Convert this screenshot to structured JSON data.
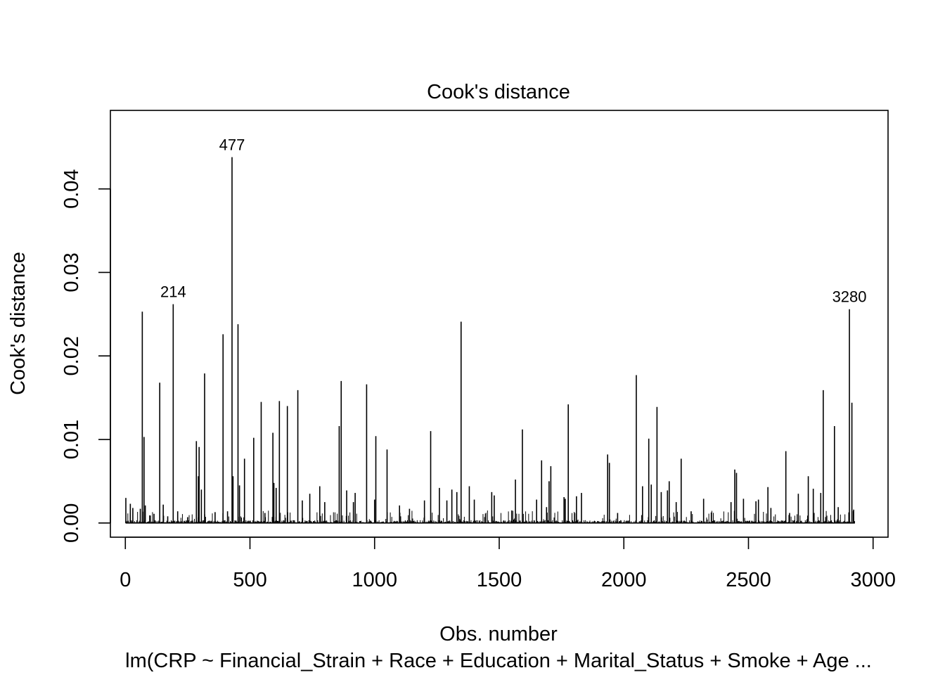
{
  "chart_data": {
    "type": "bar",
    "title": "Cook's distance",
    "xlabel": "Obs. number",
    "ylabel": "Cook's distance",
    "subtitle": "lm(CRP ~ Financial_Strain + Race + Education + Marital_Status + Smoke + Age ...",
    "xlim": [
      -60,
      3060
    ],
    "ylim": [
      -0.0017,
      0.0494
    ],
    "xticks": [
      0,
      500,
      1000,
      1500,
      2000,
      2500,
      3000
    ],
    "xtick_labels": [
      "0",
      "500",
      "1000",
      "1500",
      "2000",
      "2500",
      "3000"
    ],
    "yticks": [
      0.0,
      0.01,
      0.02,
      0.03,
      0.04
    ],
    "ytick_labels": [
      "0.00",
      "0.01",
      "0.02",
      "0.03",
      "0.04"
    ],
    "grid": false,
    "legend": false,
    "n_obs": 2927,
    "spikes": [
      {
        "x": 2,
        "y": 0.003
      },
      {
        "x": 20,
        "y": 0.0023
      },
      {
        "x": 30,
        "y": 0.0018
      },
      {
        "x": 60,
        "y": 0.0017
      },
      {
        "x": 68,
        "y": 0.0253
      },
      {
        "x": 75,
        "y": 0.0103
      },
      {
        "x": 80,
        "y": 0.0021
      },
      {
        "x": 100,
        "y": 0.0009
      },
      {
        "x": 115,
        "y": 0.0011
      },
      {
        "x": 138,
        "y": 0.0168
      },
      {
        "x": 152,
        "y": 0.0022
      },
      {
        "x": 170,
        "y": 0.0008
      },
      {
        "x": 192,
        "y": 0.0262
      },
      {
        "x": 210,
        "y": 0.0014
      },
      {
        "x": 250,
        "y": 0.0007
      },
      {
        "x": 285,
        "y": 0.0098
      },
      {
        "x": 293,
        "y": 0.0056
      },
      {
        "x": 296,
        "y": 0.0091
      },
      {
        "x": 305,
        "y": 0.004
      },
      {
        "x": 318,
        "y": 0.0179
      },
      {
        "x": 360,
        "y": 0.0013
      },
      {
        "x": 392,
        "y": 0.0226
      },
      {
        "x": 410,
        "y": 0.0014
      },
      {
        "x": 428,
        "y": 0.0438
      },
      {
        "x": 432,
        "y": 0.0056
      },
      {
        "x": 452,
        "y": 0.0238
      },
      {
        "x": 458,
        "y": 0.0045
      },
      {
        "x": 478,
        "y": 0.0077
      },
      {
        "x": 515,
        "y": 0.0102
      },
      {
        "x": 545,
        "y": 0.0145
      },
      {
        "x": 560,
        "y": 0.0012
      },
      {
        "x": 592,
        "y": 0.0108
      },
      {
        "x": 596,
        "y": 0.0048
      },
      {
        "x": 605,
        "y": 0.0042
      },
      {
        "x": 618,
        "y": 0.0146
      },
      {
        "x": 650,
        "y": 0.014
      },
      {
        "x": 692,
        "y": 0.0159
      },
      {
        "x": 710,
        "y": 0.0027
      },
      {
        "x": 740,
        "y": 0.0035
      },
      {
        "x": 780,
        "y": 0.0044
      },
      {
        "x": 800,
        "y": 0.0025
      },
      {
        "x": 858,
        "y": 0.0116
      },
      {
        "x": 866,
        "y": 0.017
      },
      {
        "x": 888,
        "y": 0.0039
      },
      {
        "x": 915,
        "y": 0.0025
      },
      {
        "x": 922,
        "y": 0.0036
      },
      {
        "x": 968,
        "y": 0.0166
      },
      {
        "x": 1000,
        "y": 0.0028
      },
      {
        "x": 1005,
        "y": 0.0104
      },
      {
        "x": 1050,
        "y": 0.0088
      },
      {
        "x": 1100,
        "y": 0.0021
      },
      {
        "x": 1140,
        "y": 0.0017
      },
      {
        "x": 1200,
        "y": 0.0027
      },
      {
        "x": 1225,
        "y": 0.011
      },
      {
        "x": 1260,
        "y": 0.0042
      },
      {
        "x": 1290,
        "y": 0.0027
      },
      {
        "x": 1310,
        "y": 0.004
      },
      {
        "x": 1330,
        "y": 0.0037
      },
      {
        "x": 1347,
        "y": 0.0241
      },
      {
        "x": 1380,
        "y": 0.0044
      },
      {
        "x": 1400,
        "y": 0.0028
      },
      {
        "x": 1470,
        "y": 0.0037
      },
      {
        "x": 1480,
        "y": 0.0033
      },
      {
        "x": 1550,
        "y": 0.0015
      },
      {
        "x": 1565,
        "y": 0.0052
      },
      {
        "x": 1593,
        "y": 0.0112
      },
      {
        "x": 1650,
        "y": 0.0028
      },
      {
        "x": 1670,
        "y": 0.0075
      },
      {
        "x": 1690,
        "y": 0.0019
      },
      {
        "x": 1700,
        "y": 0.005
      },
      {
        "x": 1707,
        "y": 0.0068
      },
      {
        "x": 1760,
        "y": 0.0031
      },
      {
        "x": 1765,
        "y": 0.0029
      },
      {
        "x": 1777,
        "y": 0.0142
      },
      {
        "x": 1810,
        "y": 0.0032
      },
      {
        "x": 1830,
        "y": 0.0036
      },
      {
        "x": 1935,
        "y": 0.0082
      },
      {
        "x": 1942,
        "y": 0.0072
      },
      {
        "x": 1975,
        "y": 0.0012
      },
      {
        "x": 2050,
        "y": 0.0177
      },
      {
        "x": 2075,
        "y": 0.0044
      },
      {
        "x": 2100,
        "y": 0.0101
      },
      {
        "x": 2110,
        "y": 0.0046
      },
      {
        "x": 2133,
        "y": 0.0139
      },
      {
        "x": 2150,
        "y": 0.0037
      },
      {
        "x": 2175,
        "y": 0.0039
      },
      {
        "x": 2182,
        "y": 0.005
      },
      {
        "x": 2210,
        "y": 0.0025
      },
      {
        "x": 2230,
        "y": 0.0077
      },
      {
        "x": 2270,
        "y": 0.0014
      },
      {
        "x": 2320,
        "y": 0.0029
      },
      {
        "x": 2430,
        "y": 0.0025
      },
      {
        "x": 2445,
        "y": 0.0064
      },
      {
        "x": 2452,
        "y": 0.006
      },
      {
        "x": 2480,
        "y": 0.0029
      },
      {
        "x": 2530,
        "y": 0.0026
      },
      {
        "x": 2540,
        "y": 0.0028
      },
      {
        "x": 2578,
        "y": 0.0043
      },
      {
        "x": 2590,
        "y": 0.0018
      },
      {
        "x": 2650,
        "y": 0.0086
      },
      {
        "x": 2665,
        "y": 0.0012
      },
      {
        "x": 2700,
        "y": 0.0035
      },
      {
        "x": 2740,
        "y": 0.0056
      },
      {
        "x": 2760,
        "y": 0.0041
      },
      {
        "x": 2790,
        "y": 0.0036
      },
      {
        "x": 2800,
        "y": 0.0159
      },
      {
        "x": 2845,
        "y": 0.0116
      },
      {
        "x": 2860,
        "y": 0.0019
      },
      {
        "x": 2905,
        "y": 0.0256
      },
      {
        "x": 2915,
        "y": 0.0144
      },
      {
        "x": 2922,
        "y": 0.0016
      }
    ],
    "annotations": [
      {
        "x": 192,
        "y": 0.0262,
        "label": "214"
      },
      {
        "x": 428,
        "y": 0.0438,
        "label": "477"
      },
      {
        "x": 2905,
        "y": 0.0256,
        "label": "3280"
      }
    ]
  }
}
